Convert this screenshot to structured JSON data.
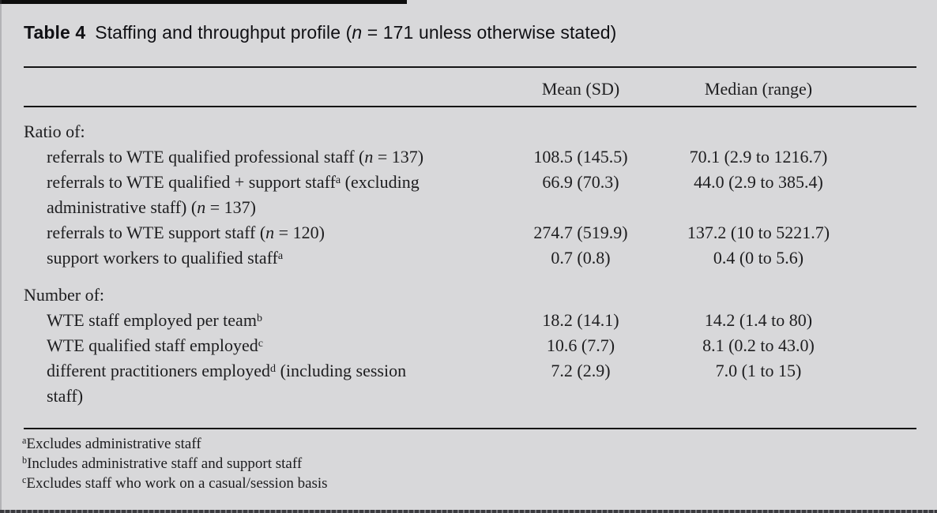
{
  "title": {
    "label": "Table 4",
    "text": "Staffing and throughput profile (*n* = 171 unless otherwise stated)"
  },
  "table": {
    "columns": {
      "mean": "Mean (SD)",
      "median": "Median (range)"
    },
    "sections": [
      {
        "header": "Ratio of:",
        "rows": [
          {
            "label": "referrals to WTE qualified professional staff (*n* = 137)",
            "mean": "108.5 (145.5)",
            "median": "70.1 (2.9 to 1216.7)"
          },
          {
            "label": "referrals to WTE qualified + support staff^a (excluding\nadministrative staff) (*n* = 137)",
            "mean": "66.9 (70.3)",
            "median": "44.0 (2.9 to 385.4)"
          },
          {
            "label": "referrals to WTE support staff (*n* = 120)",
            "mean": "274.7 (519.9)",
            "median": "137.2 (10 to 5221.7)"
          },
          {
            "label": "support workers to qualified staff^a",
            "mean": "0.7 (0.8)",
            "median": "0.4 (0 to 5.6)"
          }
        ]
      },
      {
        "header": "Number of:",
        "rows": [
          {
            "label": "WTE staff employed per team^b",
            "mean": "18.2 (14.1)",
            "median": "14.2 (1.4 to 80)"
          },
          {
            "label": "WTE qualified staff employed^c",
            "mean": "10.6 (7.7)",
            "median": "8.1 (0.2 to 43.0)"
          },
          {
            "label": "different practitioners employed^d (including session\nstaff)",
            "mean": "7.2 (2.9)",
            "median": "7.0 (1 to 15)"
          }
        ]
      }
    ]
  },
  "footnotes": [
    "^aExcludes administrative staff",
    "^bIncludes administrative staff and support staff",
    "^cExcludes staff who work on a casual/session basis"
  ],
  "colors": {
    "background": "#d8d8da",
    "text": "#1d1d1f",
    "rule": "#151515"
  }
}
